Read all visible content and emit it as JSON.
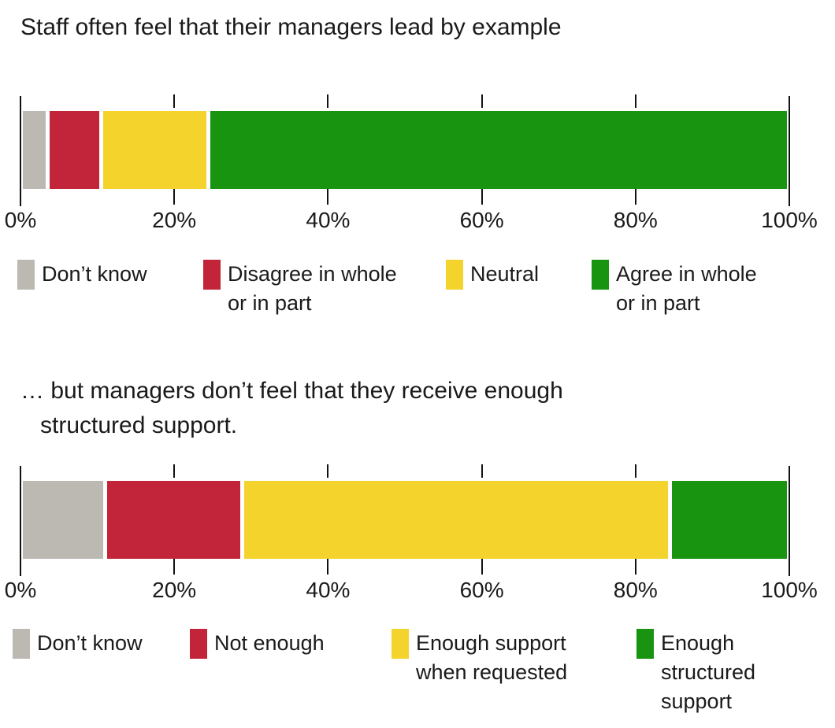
{
  "page": {
    "background": "#ffffff",
    "text_color": "#1a1a1a",
    "axis_color": "#111111",
    "palette": {
      "gray": "#bcb9b3",
      "red": "#c22439",
      "yellow": "#f4d32d",
      "green": "#189410"
    }
  },
  "chart_data": [
    {
      "type": "bar",
      "stacked": true,
      "orientation": "horizontal",
      "title": "Staff often feel that their managers lead by example",
      "title_lines": [
        "Staff often feel that their managers lead by example"
      ],
      "xlim": [
        0,
        100
      ],
      "x_ticks_percent": [
        0,
        20,
        40,
        60,
        80,
        100
      ],
      "x_tick_labels": [
        "0%",
        "20%",
        "40%",
        "60%",
        "80%",
        "100%"
      ],
      "grid": false,
      "legend_position": "bottom",
      "legend_item_x": [
        22,
        258,
        566,
        751
      ],
      "series": [
        {
          "name": "Don’t know",
          "value": 3.5,
          "color": "#bcb9b3",
          "legend_lines": [
            "Don’t know"
          ]
        },
        {
          "name": "Disagree in whole or in part",
          "value": 7,
          "color": "#c22439",
          "legend_lines": [
            "Disagree in whole",
            "or in part"
          ]
        },
        {
          "name": "Neutral",
          "value": 14,
          "color": "#f4d32d",
          "legend_lines": [
            "Neutral"
          ]
        },
        {
          "name": "Agree in whole or in part",
          "value": 75.5,
          "color": "#189410",
          "legend_lines": [
            "Agree in whole",
            "or in part"
          ]
        }
      ]
    },
    {
      "type": "bar",
      "stacked": true,
      "orientation": "horizontal",
      "title": "… but managers don’t feel that they receive enough structured support.",
      "title_lines": [
        "… but managers don’t feel that they receive enough",
        "structured support."
      ],
      "xlim": [
        0,
        100
      ],
      "x_ticks_percent": [
        0,
        20,
        40,
        60,
        80,
        100
      ],
      "x_tick_labels": [
        "0%",
        "20%",
        "40%",
        "60%",
        "80%",
        "100%"
      ],
      "grid": false,
      "legend_position": "bottom",
      "legend_item_x": [
        16,
        241,
        497,
        808
      ],
      "series": [
        {
          "name": "Don’t know",
          "value": 11,
          "color": "#bcb9b3",
          "legend_lines": [
            "Don’t know"
          ]
        },
        {
          "name": "Not enough",
          "value": 18,
          "color": "#c22439",
          "legend_lines": [
            "Not enough"
          ]
        },
        {
          "name": "Enough support when requested",
          "value": 56,
          "color": "#f4d32d",
          "legend_lines": [
            "Enough support",
            "when requested"
          ]
        },
        {
          "name": "Enough structured support",
          "value": 15,
          "color": "#189410",
          "legend_lines": [
            "Enough",
            "structured",
            "support"
          ]
        }
      ]
    }
  ]
}
